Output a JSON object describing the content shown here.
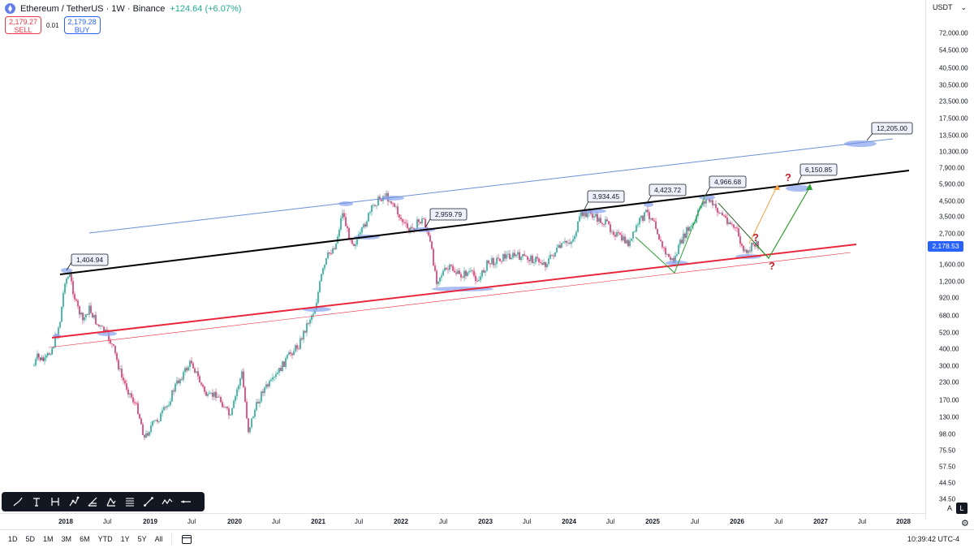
{
  "symbol": {
    "name": "Ethereum / TetherUS · 1W · Binance",
    "change": "+124.64 (+6.07%)"
  },
  "order": {
    "sell_price": "2,179.27",
    "sell_label": "SELL",
    "spread": "0.01",
    "buy_price": "2,179.28",
    "buy_label": "BUY"
  },
  "price_axis": {
    "currency": "USDT",
    "ticks": [
      "72,000.00",
      "54,500.00",
      "40,500.00",
      "30,500.00",
      "23,500.00",
      "17,500.00",
      "13,500.00",
      "10,300.00",
      "7,900.00",
      "5,900.00",
      "4,500.00",
      "3,500.00",
      "2,700.00",
      "1,600.00",
      "1,200.00",
      "920.00",
      "680.00",
      "520.00",
      "400.00",
      "300.00",
      "230.00",
      "170.00",
      "130.00",
      "98.00",
      "75.50",
      "57.50",
      "44.50",
      "34.50"
    ],
    "current_price": "2,178.53",
    "current_color": "#2962ff",
    "auto_label": "A",
    "log_label": "L"
  },
  "time_axis": {
    "ticks": [
      {
        "label": "2018",
        "year": true
      },
      {
        "label": "Jul",
        "year": false
      },
      {
        "label": "2019",
        "year": true
      },
      {
        "label": "Jul",
        "year": false
      },
      {
        "label": "2020",
        "year": true
      },
      {
        "label": "Jul",
        "year": false
      },
      {
        "label": "2021",
        "year": true
      },
      {
        "label": "Jul",
        "year": false
      },
      {
        "label": "2022",
        "year": true
      },
      {
        "label": "Jul",
        "year": false
      },
      {
        "label": "2023",
        "year": true
      },
      {
        "label": "Jul",
        "year": false
      },
      {
        "label": "2024",
        "year": true
      },
      {
        "label": "Jul",
        "year": false
      },
      {
        "label": "2025",
        "year": true
      },
      {
        "label": "Jul",
        "year": false
      },
      {
        "label": "2026",
        "year": true
      },
      {
        "label": "Jul",
        "year": false
      },
      {
        "label": "2027",
        "year": true
      },
      {
        "label": "Jul",
        "year": false
      },
      {
        "label": "2028",
        "year": true
      }
    ]
  },
  "annotations": [
    {
      "label": "1,404.94"
    },
    {
      "label": "2,959.79"
    },
    {
      "label": "3,934.45"
    },
    {
      "label": "4,423.72"
    },
    {
      "label": "4,966.68"
    },
    {
      "label": "6,150.85"
    },
    {
      "label": "12,205.00"
    }
  ],
  "question_mark": "?",
  "colors": {
    "up": "#26a69a",
    "down": "#d6336c",
    "channel_top": "#6b8fd6",
    "resistance": "#000000",
    "support": "#e8273b",
    "projection_up": "#2e9e2e",
    "projection_alt": "#f5a142",
    "highlight": "#8fa8f0"
  },
  "ranges": [
    "1D",
    "5D",
    "1M",
    "3M",
    "6M",
    "YTD",
    "1Y",
    "5Y",
    "All"
  ],
  "clock": "10:39:42 UTC-4",
  "toolbar": {
    "tools": [
      "brush-icon",
      "text-icon",
      "line-icon",
      "path-icon",
      "fib-icon",
      "pattern-icon",
      "measure-icon",
      "trendline-icon",
      "polyline-icon",
      "horizontal-line-icon"
    ]
  }
}
